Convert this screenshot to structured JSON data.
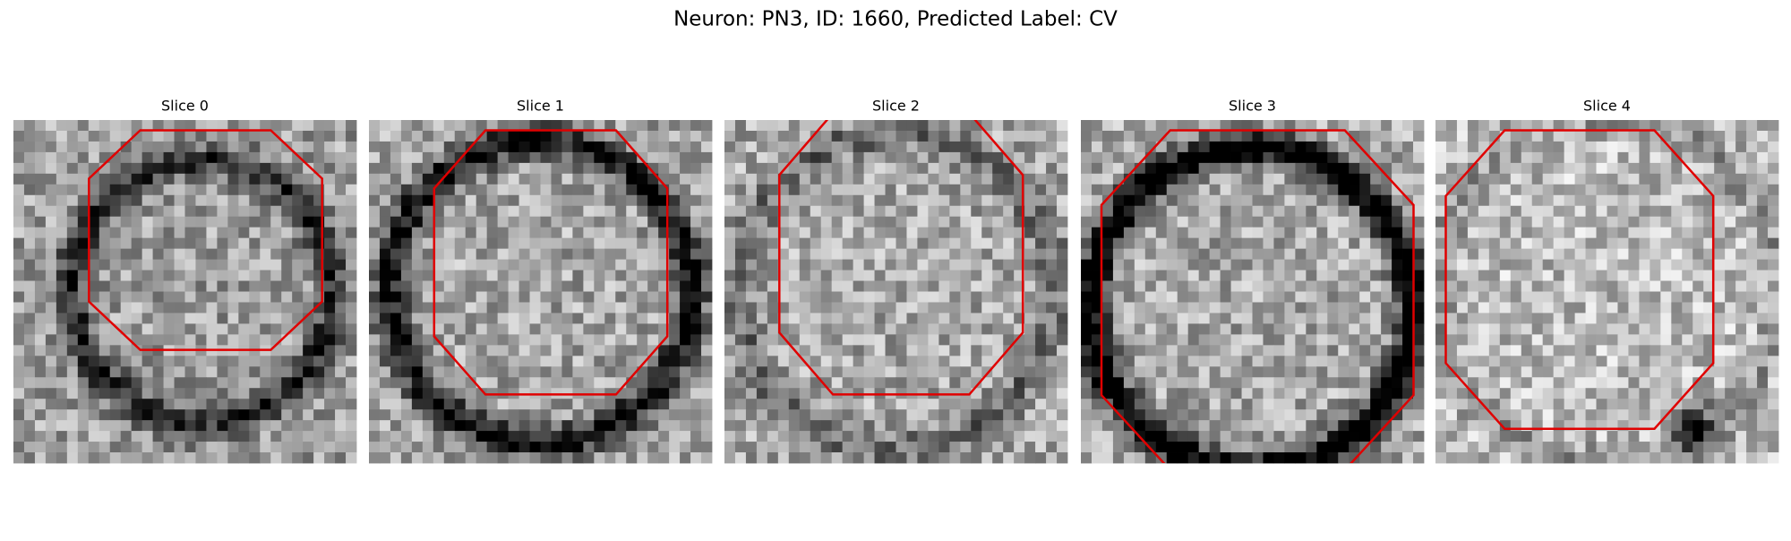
{
  "title": "Neuron: PN3, ID: 1660, Predicted Label: CV",
  "panels": [
    {
      "title": "Slice 0"
    },
    {
      "title": "Slice 1"
    },
    {
      "title": "Slice 2"
    },
    {
      "title": "Slice 3"
    },
    {
      "title": "Slice 4"
    }
  ]
}
